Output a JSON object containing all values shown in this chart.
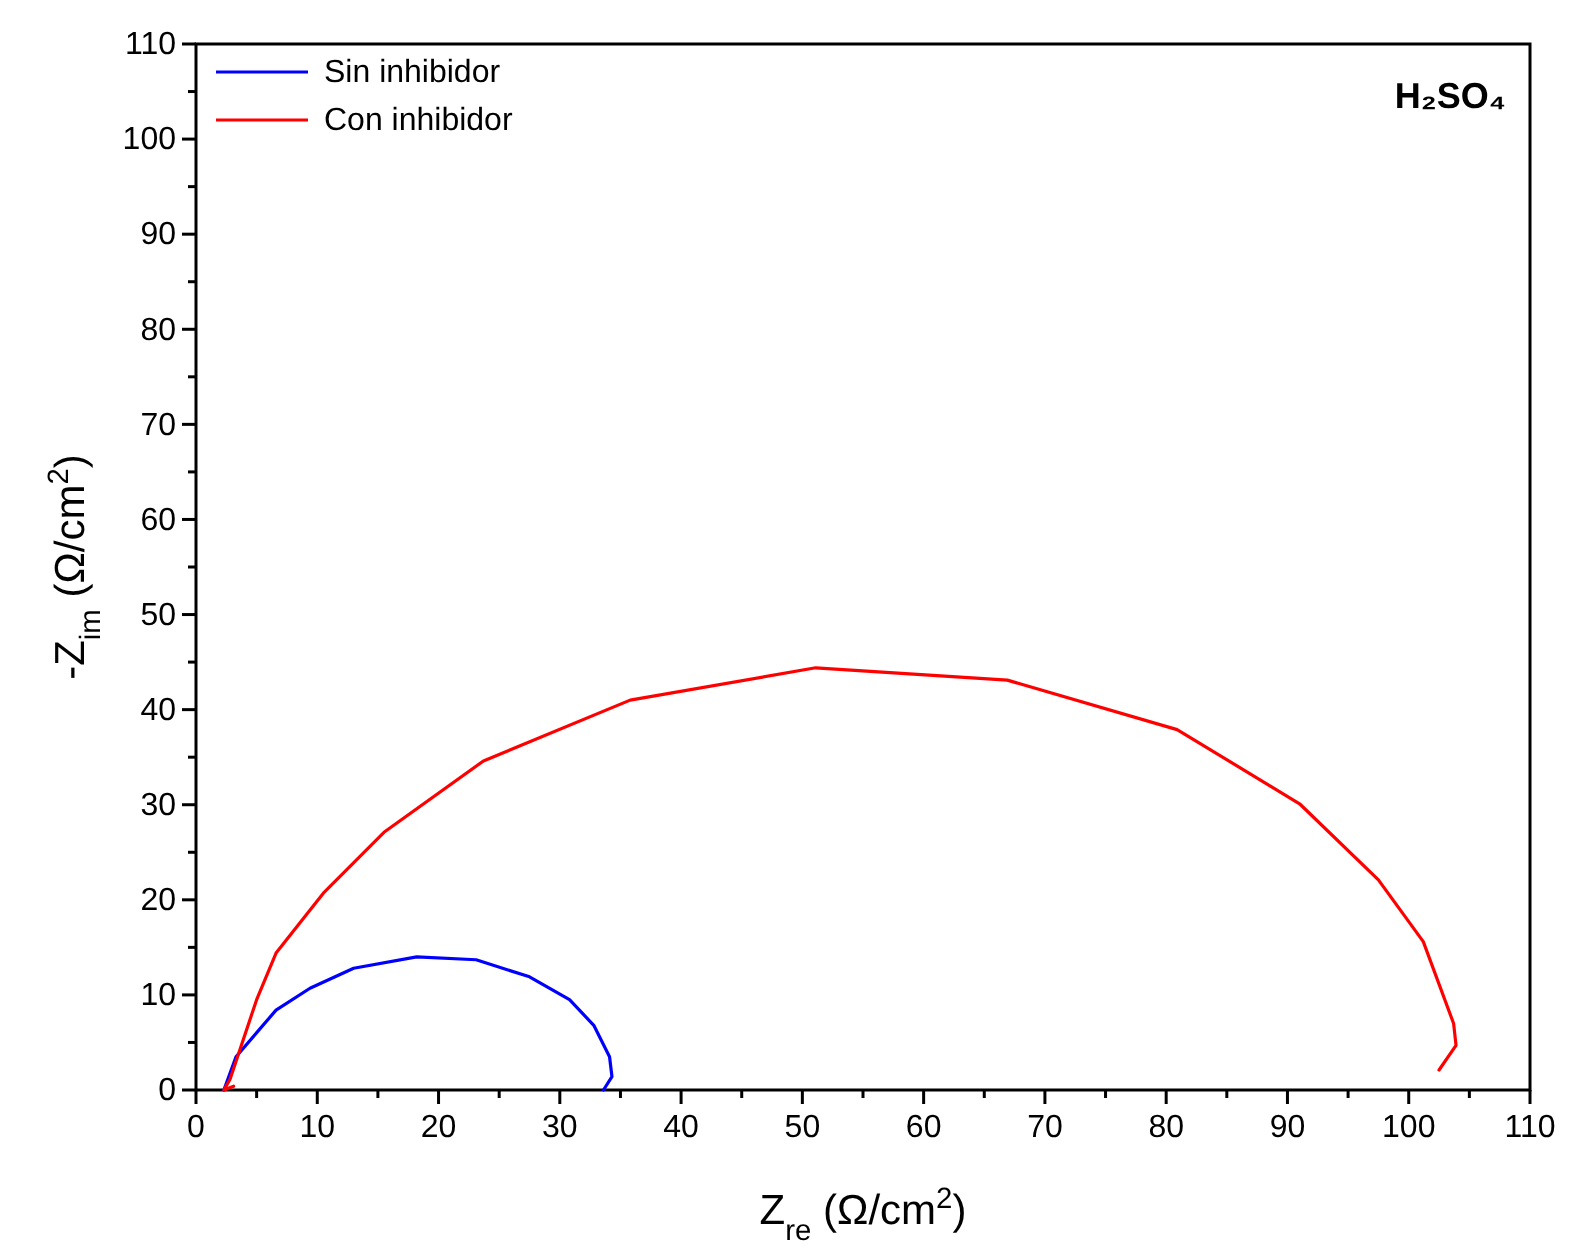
{
  "chart_data": {
    "type": "line",
    "xlabel": "Z$_{re}$ (Ω/cm$^{2}$)",
    "ylabel": "-Z$_{im}$ (Ω/cm$^{2}$)",
    "annotations": [
      "H₂SO₄"
    ],
    "legend": "top left",
    "grid": false,
    "marker": "none",
    "line_style": "solid",
    "xlim": [
      0,
      110
    ],
    "ylim": [
      0,
      110
    ],
    "xticks": [
      0,
      {
        "value": 5,
        "label": null
      },
      10,
      {
        "value": 15,
        "label": null
      },
      20,
      {
        "value": 25,
        "label": null
      },
      30,
      {
        "value": 35,
        "label": null
      },
      40,
      {
        "value": 45,
        "label": null
      },
      50,
      {
        "value": 55,
        "label": null
      },
      60,
      {
        "value": 65,
        "label": null
      },
      70,
      {
        "value": 75,
        "label": null
      },
      80,
      {
        "value": 85,
        "label": null
      },
      90,
      {
        "value": 95,
        "label": null
      },
      100,
      {
        "value": 105,
        "label": null
      },
      110
    ],
    "yticks": [
      0,
      {
        "value": 5,
        "label": null
      },
      10,
      {
        "value": 15,
        "label": null
      },
      20,
      {
        "value": 25,
        "label": null
      },
      30,
      {
        "value": 35,
        "label": null
      },
      40,
      {
        "value": 45,
        "label": null
      },
      50,
      {
        "value": 55,
        "label": null
      },
      60,
      {
        "value": 65,
        "label": null
      },
      70,
      {
        "value": 75,
        "label": null
      },
      80,
      {
        "value": 85,
        "label": null
      },
      90,
      {
        "value": 95,
        "label": null
      },
      100,
      {
        "value": 105,
        "label": null
      },
      110
    ],
    "series": [
      {
        "name": "Sin inhibidor",
        "color": "#0000ff",
        "x": [
          2.3,
          3.3,
          6.6,
          9.4,
          13,
          18.2,
          23.1,
          27.5,
          30.8,
          32.8,
          34.1,
          34.3,
          33.6
        ],
        "values": [
          0,
          3.5,
          8.4,
          10.7,
          12.8,
          14.0,
          13.7,
          11.9,
          9.5,
          6.8,
          3.5,
          1.4,
          0
        ]
      },
      {
        "name": "Con inhibidor",
        "color": "#ff0000",
        "x": [
          3.1,
          2.3,
          2.8,
          5.0,
          6.6,
          10.5,
          15.5,
          23.7,
          35.8,
          51.1,
          66.9,
          80.9,
          91.0,
          97.5,
          101.2,
          103.7,
          103.9,
          102.5
        ],
        "values": [
          0.4,
          0,
          1.1,
          9.5,
          14.4,
          20.7,
          27.1,
          34.6,
          41.0,
          44.4,
          43.1,
          37.9,
          30.1,
          22.1,
          15.6,
          7.0,
          4.7,
          2.1
        ]
      }
    ]
  }
}
